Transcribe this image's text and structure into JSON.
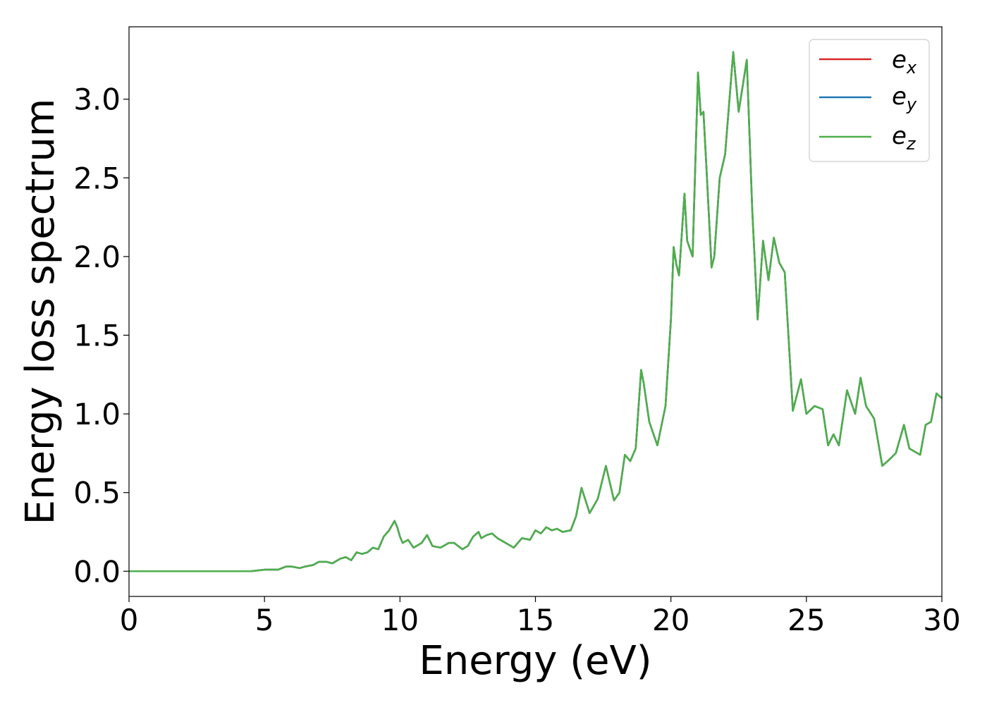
{
  "chart_data": {
    "type": "line",
    "title": "",
    "xlabel": "Energy (eV)",
    "ylabel": "Energy loss spectrum",
    "xlim": [
      0,
      30
    ],
    "ylim": [
      -0.16,
      3.46
    ],
    "xticks": [
      0,
      5,
      10,
      15,
      20,
      25,
      30
    ],
    "xtick_labels": [
      "0",
      "5",
      "10",
      "15",
      "20",
      "25",
      "30"
    ],
    "yticks": [
      0.0,
      0.5,
      1.0,
      1.5,
      2.0,
      2.5,
      3.0
    ],
    "ytick_labels": [
      "0.0",
      "0.5",
      "1.0",
      "1.5",
      "2.0",
      "2.5",
      "3.0"
    ],
    "grid": false,
    "legend_position": "top-right",
    "colors": {
      "ex": "#d62728",
      "ey": "#1f77b4",
      "ez": "#4daf4a"
    },
    "series": [
      {
        "name": "ex",
        "legend_base": "e",
        "legend_sub": "x",
        "color": "#d62728",
        "x": [
          0,
          1,
          2,
          3,
          4,
          4.5,
          5,
          5.3,
          5.5,
          5.8,
          6.0,
          6.3,
          6.5,
          6.8,
          7.0,
          7.3,
          7.5,
          7.8,
          8.0,
          8.2,
          8.4,
          8.6,
          8.8,
          9.0,
          9.2,
          9.4,
          9.6,
          9.8,
          9.9,
          10.0,
          10.1,
          10.3,
          10.5,
          10.8,
          11.0,
          11.2,
          11.5,
          11.8,
          12.0,
          12.3,
          12.5,
          12.7,
          12.9,
          13.0,
          13.2,
          13.4,
          13.6,
          13.8,
          14.0,
          14.2,
          14.5,
          14.8,
          15.0,
          15.2,
          15.4,
          15.6,
          15.8,
          16.0,
          16.3,
          16.5,
          16.7,
          17.0,
          17.3,
          17.6,
          17.9,
          18.1,
          18.3,
          18.5,
          18.7,
          18.9,
          19.0,
          19.2,
          19.5,
          19.8,
          20.0,
          20.1,
          20.2,
          20.3,
          20.5,
          20.6,
          20.8,
          21.0,
          21.1,
          21.2,
          21.3,
          21.5,
          21.6,
          21.8,
          22.0,
          22.3,
          22.5,
          22.8,
          23.0,
          23.2,
          23.4,
          23.6,
          23.8,
          24.0,
          24.2,
          24.5,
          24.8,
          25.0,
          25.3,
          25.6,
          25.8,
          26.0,
          26.2,
          26.5,
          26.8,
          27.0,
          27.2,
          27.5,
          27.8,
          28.0,
          28.3,
          28.6,
          28.8,
          29.0,
          29.2,
          29.4,
          29.6,
          29.8,
          30.0
        ],
        "values": [
          0.0,
          0.0,
          0.0,
          0.0,
          0.0,
          0.0,
          0.01,
          0.01,
          0.01,
          0.03,
          0.03,
          0.02,
          0.03,
          0.04,
          0.06,
          0.06,
          0.05,
          0.08,
          0.09,
          0.07,
          0.12,
          0.11,
          0.12,
          0.15,
          0.14,
          0.22,
          0.26,
          0.32,
          0.28,
          0.22,
          0.18,
          0.2,
          0.15,
          0.18,
          0.23,
          0.16,
          0.15,
          0.18,
          0.18,
          0.14,
          0.16,
          0.22,
          0.25,
          0.21,
          0.23,
          0.24,
          0.21,
          0.19,
          0.17,
          0.15,
          0.21,
          0.2,
          0.26,
          0.24,
          0.28,
          0.26,
          0.27,
          0.25,
          0.26,
          0.35,
          0.53,
          0.37,
          0.46,
          0.67,
          0.45,
          0.5,
          0.74,
          0.7,
          0.78,
          1.28,
          1.19,
          0.95,
          0.8,
          1.05,
          1.6,
          2.06,
          1.95,
          1.88,
          2.4,
          2.1,
          2.0,
          3.17,
          2.9,
          2.92,
          2.6,
          1.93,
          2.0,
          2.5,
          2.65,
          3.3,
          2.92,
          3.25,
          2.3,
          1.6,
          2.1,
          1.85,
          2.12,
          1.96,
          1.9,
          1.02,
          1.22,
          1.0,
          1.05,
          1.03,
          0.8,
          0.87,
          0.8,
          1.15,
          1.0,
          1.23,
          1.05,
          0.97,
          0.67,
          0.7,
          0.75,
          0.93,
          0.78,
          0.76,
          0.74,
          0.93,
          0.95,
          1.13,
          1.1
        ]
      },
      {
        "name": "ey",
        "legend_base": "e",
        "legend_sub": "y",
        "color": "#1f77b4",
        "x": [
          0,
          1,
          2,
          3,
          4,
          4.5,
          5,
          5.3,
          5.5,
          5.8,
          6.0,
          6.3,
          6.5,
          6.8,
          7.0,
          7.3,
          7.5,
          7.8,
          8.0,
          8.2,
          8.4,
          8.6,
          8.8,
          9.0,
          9.2,
          9.4,
          9.6,
          9.8,
          9.9,
          10.0,
          10.1,
          10.3,
          10.5,
          10.8,
          11.0,
          11.2,
          11.5,
          11.8,
          12.0,
          12.3,
          12.5,
          12.7,
          12.9,
          13.0,
          13.2,
          13.4,
          13.6,
          13.8,
          14.0,
          14.2,
          14.5,
          14.8,
          15.0,
          15.2,
          15.4,
          15.6,
          15.8,
          16.0,
          16.3,
          16.5,
          16.7,
          17.0,
          17.3,
          17.6,
          17.9,
          18.1,
          18.3,
          18.5,
          18.7,
          18.9,
          19.0,
          19.2,
          19.5,
          19.8,
          20.0,
          20.1,
          20.2,
          20.3,
          20.5,
          20.6,
          20.8,
          21.0,
          21.1,
          21.2,
          21.3,
          21.5,
          21.6,
          21.8,
          22.0,
          22.3,
          22.5,
          22.8,
          23.0,
          23.2,
          23.4,
          23.6,
          23.8,
          24.0,
          24.2,
          24.5,
          24.8,
          25.0,
          25.3,
          25.6,
          25.8,
          26.0,
          26.2,
          26.5,
          26.8,
          27.0,
          27.2,
          27.5,
          27.8,
          28.0,
          28.3,
          28.6,
          28.8,
          29.0,
          29.2,
          29.4,
          29.6,
          29.8,
          30.0
        ],
        "values": [
          0.0,
          0.0,
          0.0,
          0.0,
          0.0,
          0.0,
          0.01,
          0.01,
          0.01,
          0.03,
          0.03,
          0.02,
          0.03,
          0.04,
          0.06,
          0.06,
          0.05,
          0.08,
          0.09,
          0.07,
          0.12,
          0.11,
          0.12,
          0.15,
          0.14,
          0.22,
          0.26,
          0.32,
          0.28,
          0.22,
          0.18,
          0.2,
          0.15,
          0.18,
          0.23,
          0.16,
          0.15,
          0.18,
          0.18,
          0.14,
          0.16,
          0.22,
          0.25,
          0.21,
          0.23,
          0.24,
          0.21,
          0.19,
          0.17,
          0.15,
          0.21,
          0.2,
          0.26,
          0.24,
          0.28,
          0.26,
          0.27,
          0.25,
          0.26,
          0.35,
          0.53,
          0.37,
          0.46,
          0.67,
          0.45,
          0.5,
          0.74,
          0.7,
          0.78,
          1.28,
          1.19,
          0.95,
          0.8,
          1.05,
          1.6,
          2.06,
          1.95,
          1.88,
          2.4,
          2.1,
          2.0,
          3.17,
          2.9,
          2.92,
          2.6,
          1.93,
          2.0,
          2.5,
          2.65,
          3.3,
          2.92,
          3.25,
          2.3,
          1.6,
          2.1,
          1.85,
          2.12,
          1.96,
          1.9,
          1.02,
          1.22,
          1.0,
          1.05,
          1.03,
          0.8,
          0.87,
          0.8,
          1.15,
          1.0,
          1.23,
          1.05,
          0.97,
          0.67,
          0.7,
          0.75,
          0.93,
          0.78,
          0.76,
          0.74,
          0.93,
          0.95,
          1.13,
          1.1
        ]
      },
      {
        "name": "ez",
        "legend_base": "e",
        "legend_sub": "z",
        "color": "#4daf4a",
        "x": [
          0,
          1,
          2,
          3,
          4,
          4.5,
          5,
          5.3,
          5.5,
          5.8,
          6.0,
          6.3,
          6.5,
          6.8,
          7.0,
          7.3,
          7.5,
          7.8,
          8.0,
          8.2,
          8.4,
          8.6,
          8.8,
          9.0,
          9.2,
          9.4,
          9.6,
          9.8,
          9.9,
          10.0,
          10.1,
          10.3,
          10.5,
          10.8,
          11.0,
          11.2,
          11.5,
          11.8,
          12.0,
          12.3,
          12.5,
          12.7,
          12.9,
          13.0,
          13.2,
          13.4,
          13.6,
          13.8,
          14.0,
          14.2,
          14.5,
          14.8,
          15.0,
          15.2,
          15.4,
          15.6,
          15.8,
          16.0,
          16.3,
          16.5,
          16.7,
          17.0,
          17.3,
          17.6,
          17.9,
          18.1,
          18.3,
          18.5,
          18.7,
          18.9,
          19.0,
          19.2,
          19.5,
          19.8,
          20.0,
          20.1,
          20.2,
          20.3,
          20.5,
          20.6,
          20.8,
          21.0,
          21.1,
          21.2,
          21.3,
          21.5,
          21.6,
          21.8,
          22.0,
          22.3,
          22.5,
          22.8,
          23.0,
          23.2,
          23.4,
          23.6,
          23.8,
          24.0,
          24.2,
          24.5,
          24.8,
          25.0,
          25.3,
          25.6,
          25.8,
          26.0,
          26.2,
          26.5,
          26.8,
          27.0,
          27.2,
          27.5,
          27.8,
          28.0,
          28.3,
          28.6,
          28.8,
          29.0,
          29.2,
          29.4,
          29.6,
          29.8,
          30.0
        ],
        "values": [
          0.0,
          0.0,
          0.0,
          0.0,
          0.0,
          0.0,
          0.01,
          0.01,
          0.01,
          0.03,
          0.03,
          0.02,
          0.03,
          0.04,
          0.06,
          0.06,
          0.05,
          0.08,
          0.09,
          0.07,
          0.12,
          0.11,
          0.12,
          0.15,
          0.14,
          0.22,
          0.26,
          0.32,
          0.28,
          0.22,
          0.18,
          0.2,
          0.15,
          0.18,
          0.23,
          0.16,
          0.15,
          0.18,
          0.18,
          0.14,
          0.16,
          0.22,
          0.25,
          0.21,
          0.23,
          0.24,
          0.21,
          0.19,
          0.17,
          0.15,
          0.21,
          0.2,
          0.26,
          0.24,
          0.28,
          0.26,
          0.27,
          0.25,
          0.26,
          0.35,
          0.53,
          0.37,
          0.46,
          0.67,
          0.45,
          0.5,
          0.74,
          0.7,
          0.78,
          1.28,
          1.19,
          0.95,
          0.8,
          1.05,
          1.6,
          2.06,
          1.95,
          1.88,
          2.4,
          2.1,
          2.0,
          3.17,
          2.9,
          2.92,
          2.6,
          1.93,
          2.0,
          2.5,
          2.65,
          3.3,
          2.92,
          3.25,
          2.3,
          1.6,
          2.1,
          1.85,
          2.12,
          1.96,
          1.9,
          1.02,
          1.22,
          1.0,
          1.05,
          1.03,
          0.8,
          0.87,
          0.8,
          1.15,
          1.0,
          1.23,
          1.05,
          0.97,
          0.67,
          0.7,
          0.75,
          0.93,
          0.78,
          0.76,
          0.74,
          0.93,
          0.95,
          1.13,
          1.1
        ]
      }
    ]
  }
}
